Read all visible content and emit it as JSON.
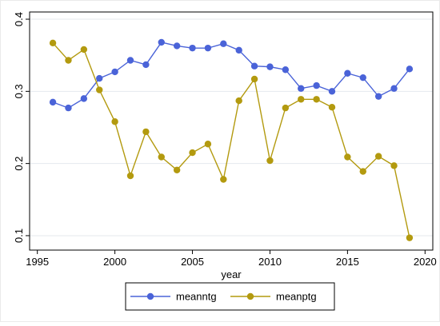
{
  "chart_data": {
    "type": "line",
    "xlabel": "year",
    "ylabel": "",
    "xlim": [
      1994.5,
      2020.5
    ],
    "ylim": [
      0.08,
      0.41
    ],
    "xticks": [
      1995,
      2000,
      2005,
      2010,
      2015,
      2020
    ],
    "yticks": [
      0.1,
      0.2,
      0.3,
      0.4
    ],
    "ytick_labels": [
      "0.1",
      "0.2",
      "0.3",
      "0.4"
    ],
    "grid": true,
    "legend_position": "bottom",
    "series": [
      {
        "name": "meanntg",
        "color": "#4a63d8",
        "x": [
          1996,
          1997,
          1998,
          1999,
          2000,
          2001,
          2002,
          2003,
          2004,
          2005,
          2006,
          2007,
          2008,
          2009,
          2010,
          2011,
          2012,
          2013,
          2014,
          2015,
          2016,
          2017,
          2018,
          2019
        ],
        "values": [
          0.285,
          0.277,
          0.29,
          0.318,
          0.327,
          0.343,
          0.337,
          0.368,
          0.363,
          0.36,
          0.36,
          0.366,
          0.357,
          0.335,
          0.334,
          0.33,
          0.304,
          0.308,
          0.3,
          0.325,
          0.319,
          0.293,
          0.304,
          0.331
        ]
      },
      {
        "name": "meanptg",
        "color": "#b39a0f",
        "x": [
          1996,
          1997,
          1998,
          1999,
          2000,
          2001,
          2002,
          2003,
          2004,
          2005,
          2006,
          2007,
          2008,
          2009,
          2010,
          2011,
          2012,
          2013,
          2014,
          2015,
          2016,
          2017,
          2018,
          2019
        ],
        "values": [
          0.367,
          0.343,
          0.358,
          0.302,
          0.258,
          0.183,
          0.244,
          0.209,
          0.191,
          0.215,
          0.227,
          0.178,
          0.287,
          0.317,
          0.204,
          0.277,
          0.289,
          0.289,
          0.278,
          0.209,
          0.189,
          0.21,
          0.197,
          0.097
        ]
      }
    ]
  }
}
